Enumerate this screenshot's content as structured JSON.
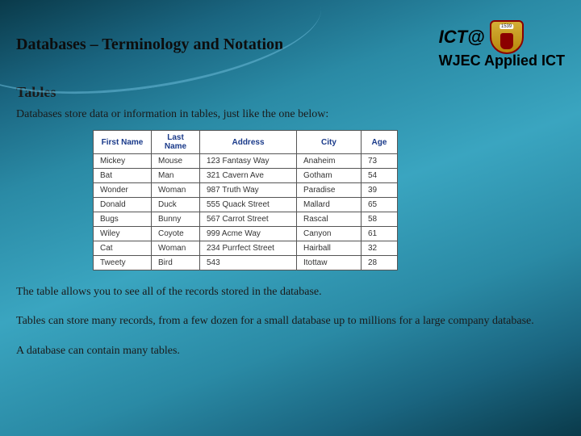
{
  "header": {
    "title": "Databases – Terminology and Notation",
    "brand_top": "ICT@",
    "brand_sub": "WJEC Applied ICT"
  },
  "section": {
    "heading": "Tables",
    "intro": "Databases store data or information in tables, just like the one below:",
    "para1": "The table allows you to see all of the records stored in the database.",
    "para2": "Tables can store many records, from a few dozen for a small database up to millions for a large company database.",
    "para3": "A database can contain many tables."
  },
  "table": {
    "columns": [
      "First Name",
      "Last Name",
      "Address",
      "City",
      "Age"
    ],
    "rows": [
      [
        "Mickey",
        "Mouse",
        "123 Fantasy Way",
        "Anaheim",
        "73"
      ],
      [
        "Bat",
        "Man",
        "321 Cavern Ave",
        "Gotham",
        "54"
      ],
      [
        "Wonder",
        "Woman",
        "987 Truth Way",
        "Paradise",
        "39"
      ],
      [
        "Donald",
        "Duck",
        "555 Quack Street",
        "Mallard",
        "65"
      ],
      [
        "Bugs",
        "Bunny",
        "567 Carrot Street",
        "Rascal",
        "58"
      ],
      [
        "Wiley",
        "Coyote",
        "999 Acme Way",
        "Canyon",
        "61"
      ],
      [
        "Cat",
        "Woman",
        "234 Purrfect Street",
        "Hairball",
        "32"
      ],
      [
        "Tweety",
        "Bird",
        "543",
        "Itottaw",
        "28"
      ]
    ],
    "header_color": "#1a3a8a",
    "border_color": "#555555",
    "background_color": "#ffffff"
  },
  "style": {
    "bg_gradient": [
      "#0a3a4a",
      "#1a6580",
      "#2a8aa5",
      "#3aa5c0"
    ],
    "body_font": "Georgia",
    "brand_font": "Arial"
  }
}
